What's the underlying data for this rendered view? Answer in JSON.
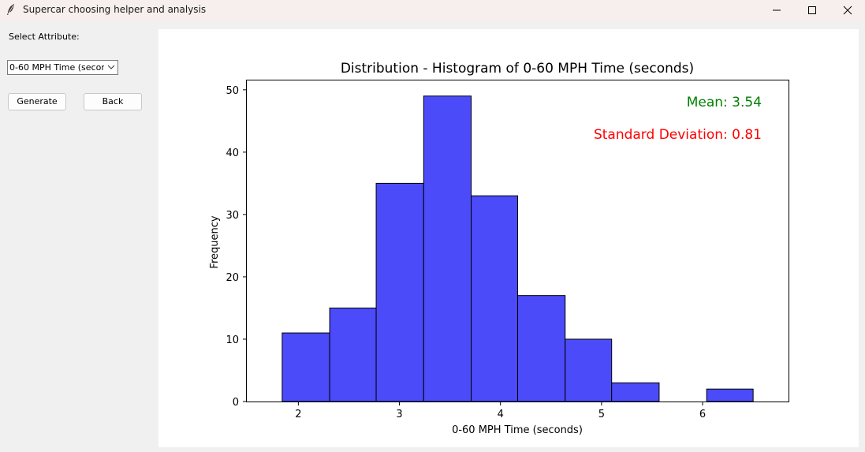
{
  "window": {
    "title": "Supercar choosing helper and analysis",
    "icons": {
      "app": "feather-icon",
      "minimize": "minimize-icon",
      "maximize": "maximize-icon",
      "close": "close-icon"
    }
  },
  "controls": {
    "select_label": "Select Attribute:",
    "attribute_value": "0-60 MPH Time (secon",
    "generate_label": "Generate",
    "back_label": "Back"
  },
  "chart_data": {
    "type": "bar",
    "title": "Distribution - Histogram of 0-60 MPH Time (seconds)",
    "xlabel": "0-60 MPH Time (seconds)",
    "ylabel": "Frequency",
    "bin_edges": [
      1.84,
      2.31,
      2.77,
      3.24,
      3.71,
      4.17,
      4.64,
      5.1,
      5.57,
      6.04,
      6.5
    ],
    "values": [
      11,
      15,
      35,
      49,
      33,
      17,
      10,
      3,
      0,
      2
    ],
    "xlim": [
      1.49,
      6.85
    ],
    "ylim": [
      0,
      51.5
    ],
    "xticks": [
      2,
      3,
      4,
      5,
      6
    ],
    "yticks": [
      0,
      10,
      20,
      30,
      40,
      50
    ],
    "bar_color": "#4b4bf9",
    "bar_edge_color": "#000000",
    "annotations": [
      {
        "text": "Mean: 3.54",
        "color": "#008000"
      },
      {
        "text": "Standard Deviation: 0.81",
        "color": "#ff0000"
      }
    ],
    "grid": false,
    "legend": "none"
  }
}
